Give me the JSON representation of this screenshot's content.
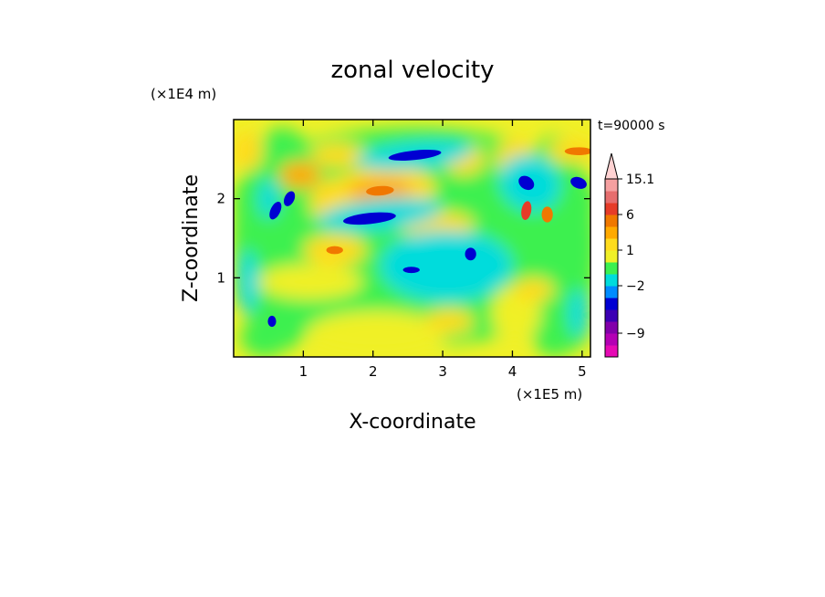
{
  "chart_data": {
    "type": "heatmap",
    "title": "zonal velocity",
    "xlabel": "X-coordinate",
    "ylabel": "Z-coordinate",
    "x_scale_label": "(×1E5 m)",
    "y_scale_label": "(×1E4 m)",
    "time_label": "t=90000 s",
    "xlim": [
      0,
      5.12
    ],
    "ylim": [
      0,
      3.0
    ],
    "x_ticks": [
      1,
      2,
      3,
      4,
      5
    ],
    "y_ticks": [
      1,
      2
    ],
    "colorbar": {
      "levels": [
        -13,
        -11,
        -9,
        -7,
        -5,
        -3,
        -2,
        -1,
        0,
        1,
        2,
        3,
        6,
        9,
        12,
        15.1
      ],
      "colors": [
        "#e60ab4",
        "#b400b4",
        "#8200aa",
        "#3c00b4",
        "#0000d2",
        "#008cff",
        "#00dcdc",
        "#3cf050",
        "#f0f028",
        "#ffdc1e",
        "#ffaa00",
        "#f07800",
        "#e63c28",
        "#e66e6e",
        "#f5a0a0",
        "#ffd2d2"
      ],
      "labels": [
        "15.1",
        "6",
        "1",
        "−2",
        "−9"
      ],
      "label_values": [
        15.1,
        6,
        1,
        -2,
        -9
      ],
      "extend": "max"
    }
  }
}
